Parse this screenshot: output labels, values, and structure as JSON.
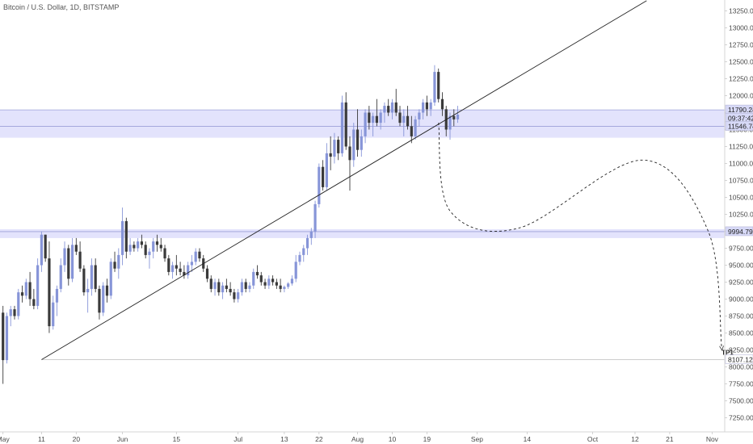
{
  "chart_data": {
    "type": "candlestick",
    "title": "Bitcoin / U.S. Dollar, 1D, BITSTAMP",
    "ylim": [
      7100,
      13400
    ],
    "y_ticks": [
      13250,
      13000,
      12750,
      12500,
      12250,
      12000,
      11750,
      11500,
      11250,
      11000,
      10750,
      10500,
      10250,
      10000,
      9750,
      9500,
      9250,
      9000,
      8750,
      8500,
      8250,
      8000,
      7750,
      7500,
      7250
    ],
    "x_ticks": [
      {
        "label": "May",
        "day": 0
      },
      {
        "label": "11",
        "day": 10
      },
      {
        "label": "20",
        "day": 19
      },
      {
        "label": "Jun",
        "day": 31
      },
      {
        "label": "15",
        "day": 45
      },
      {
        "label": "Jul",
        "day": 61
      },
      {
        "label": "13",
        "day": 73
      },
      {
        "label": "22",
        "day": 82
      },
      {
        "label": "Aug",
        "day": 92
      },
      {
        "label": "10",
        "day": 101
      },
      {
        "label": "19",
        "day": 110
      },
      {
        "label": "Sep",
        "day": 123
      },
      {
        "label": "14",
        "day": 136
      },
      {
        "label": "Oct",
        "day": 153
      },
      {
        "label": "12",
        "day": 164
      },
      {
        "label": "21",
        "day": 173
      },
      {
        "label": "Nov",
        "day": 184
      }
    ],
    "candles": [
      [
        8800,
        8900,
        7750,
        8100
      ],
      [
        8100,
        8800,
        8050,
        8750
      ],
      [
        8750,
        8900,
        8600,
        8850
      ],
      [
        8850,
        8900,
        8700,
        8750
      ],
      [
        8750,
        9150,
        8700,
        9100
      ],
      [
        9100,
        9200,
        8950,
        9050
      ],
      [
        9050,
        9300,
        9000,
        9250
      ],
      [
        9250,
        9400,
        8900,
        9000
      ],
      [
        9000,
        9150,
        8850,
        8900
      ],
      [
        8900,
        9600,
        8850,
        9500
      ],
      [
        9500,
        10000,
        9400,
        9950
      ],
      [
        9950,
        9950,
        9550,
        9600
      ],
      [
        9600,
        9850,
        8500,
        8600
      ],
      [
        8600,
        9050,
        8550,
        8950
      ],
      [
        8950,
        9200,
        8750,
        9150
      ],
      [
        9150,
        9600,
        9100,
        9500
      ],
      [
        9500,
        9850,
        9400,
        9750
      ],
      [
        9750,
        9800,
        9200,
        9300
      ],
      [
        9300,
        9900,
        9250,
        9800
      ],
      [
        9800,
        9900,
        9650,
        9700
      ],
      [
        9700,
        9850,
        9400,
        9450
      ],
      [
        9450,
        9500,
        9050,
        9100
      ],
      [
        9100,
        9300,
        8800,
        9150
      ],
      [
        9150,
        9600,
        9050,
        9500
      ],
      [
        9500,
        9600,
        9100,
        9150
      ],
      [
        9150,
        9200,
        8700,
        8800
      ],
      [
        8800,
        9250,
        8750,
        9200
      ],
      [
        9200,
        9300,
        8950,
        9050
      ],
      [
        9050,
        9600,
        9000,
        9550
      ],
      [
        9550,
        9700,
        9400,
        9450
      ],
      [
        9450,
        9750,
        9300,
        9650
      ],
      [
        9650,
        10350,
        9500,
        10150
      ],
      [
        10150,
        10200,
        9600,
        9700
      ],
      [
        9700,
        9900,
        9650,
        9800
      ],
      [
        9800,
        9850,
        9700,
        9750
      ],
      [
        9750,
        9900,
        9700,
        9850
      ],
      [
        9850,
        9950,
        9750,
        9800
      ],
      [
        9800,
        9850,
        9600,
        9650
      ],
      [
        9650,
        9750,
        9450,
        9700
      ],
      [
        9700,
        9900,
        9600,
        9850
      ],
      [
        9850,
        9950,
        9700,
        9800
      ],
      [
        9800,
        9900,
        9700,
        9750
      ],
      [
        9750,
        9800,
        9550,
        9600
      ],
      [
        9600,
        9650,
        9350,
        9400
      ],
      [
        9400,
        9550,
        9300,
        9500
      ],
      [
        9500,
        9650,
        9350,
        9450
      ],
      [
        9450,
        9550,
        9350,
        9400
      ],
      [
        9400,
        9500,
        9300,
        9350
      ],
      [
        9350,
        9550,
        9300,
        9500
      ],
      [
        9500,
        9650,
        9400,
        9550
      ],
      [
        9550,
        9750,
        9500,
        9700
      ],
      [
        9700,
        9750,
        9550,
        9600
      ],
      [
        9600,
        9650,
        9400,
        9450
      ],
      [
        9450,
        9500,
        9250,
        9300
      ],
      [
        9300,
        9350,
        9100,
        9150
      ],
      [
        9150,
        9300,
        9050,
        9250
      ],
      [
        9250,
        9300,
        9050,
        9100
      ],
      [
        9100,
        9250,
        9000,
        9200
      ],
      [
        9200,
        9300,
        9100,
        9150
      ],
      [
        9150,
        9250,
        9050,
        9100
      ],
      [
        9100,
        9150,
        8950,
        9000
      ],
      [
        9000,
        9150,
        8950,
        9100
      ],
      [
        9100,
        9300,
        9050,
        9250
      ],
      [
        9250,
        9300,
        9100,
        9150
      ],
      [
        9150,
        9250,
        9100,
        9200
      ],
      [
        9200,
        9450,
        9150,
        9400
      ],
      [
        9400,
        9500,
        9300,
        9350
      ],
      [
        9350,
        9400,
        9200,
        9250
      ],
      [
        9250,
        9300,
        9150,
        9200
      ],
      [
        9200,
        9350,
        9150,
        9300
      ],
      [
        9300,
        9350,
        9200,
        9250
      ],
      [
        9250,
        9300,
        9150,
        9200
      ],
      [
        9200,
        9300,
        9100,
        9150
      ],
      [
        9150,
        9200,
        9100,
        9180
      ],
      [
        9180,
        9250,
        9150,
        9230
      ],
      [
        9230,
        9350,
        9200,
        9300
      ],
      [
        9300,
        9650,
        9250,
        9550
      ],
      [
        9550,
        9700,
        9500,
        9650
      ],
      [
        9650,
        9800,
        9550,
        9750
      ],
      [
        9750,
        9950,
        9650,
        9900
      ],
      [
        9900,
        10050,
        9800,
        10000
      ],
      [
        10000,
        10450,
        9900,
        10400
      ],
      [
        10400,
        11000,
        10350,
        10950
      ],
      [
        10950,
        11050,
        10600,
        10650
      ],
      [
        10650,
        11300,
        10600,
        11150
      ],
      [
        11150,
        11400,
        10900,
        11100
      ],
      [
        11100,
        11450,
        11000,
        11350
      ],
      [
        11350,
        11400,
        11050,
        11150
      ],
      [
        11150,
        12000,
        11100,
        11900
      ],
      [
        11900,
        12050,
        11200,
        11250
      ],
      [
        11250,
        11400,
        10600,
        11050
      ],
      [
        11050,
        11600,
        10950,
        11500
      ],
      [
        11500,
        11800,
        11100,
        11200
      ],
      [
        11200,
        11500,
        11100,
        11400
      ],
      [
        11400,
        11800,
        11300,
        11750
      ],
      [
        11750,
        11850,
        11500,
        11600
      ],
      [
        11600,
        11750,
        11400,
        11700
      ],
      [
        11700,
        11950,
        11550,
        11600
      ],
      [
        11600,
        11800,
        11500,
        11750
      ],
      [
        11750,
        11900,
        11600,
        11850
      ],
      [
        11850,
        11950,
        11700,
        11750
      ],
      [
        11750,
        11950,
        11650,
        11900
      ],
      [
        11900,
        12100,
        11700,
        11750
      ],
      [
        11750,
        11850,
        11550,
        11600
      ],
      [
        11600,
        11800,
        11400,
        11700
      ],
      [
        11700,
        11850,
        11500,
        11550
      ],
      [
        11550,
        11700,
        11300,
        11400
      ],
      [
        11400,
        11700,
        11350,
        11650
      ],
      [
        11650,
        11800,
        11550,
        11750
      ],
      [
        11750,
        11950,
        11650,
        11900
      ],
      [
        11900,
        12000,
        11700,
        11800
      ],
      [
        11800,
        11950,
        11700,
        11900
      ],
      [
        11900,
        12450,
        11850,
        12350
      ],
      [
        12350,
        12400,
        11900,
        11950
      ],
      [
        11950,
        12050,
        11700,
        11800
      ],
      [
        11800,
        11850,
        11400,
        11500
      ],
      [
        11500,
        11750,
        11350,
        11700
      ],
      [
        11700,
        11800,
        11550,
        11650
      ],
      [
        11650,
        11850,
        11600,
        11720
      ]
    ],
    "zones": [
      {
        "top": 11790.24,
        "bottom": 11380
      },
      {
        "top": 10030,
        "bottom": 9900
      }
    ],
    "level_lines": [
      11790.24,
      11546.74,
      9994.79,
      8107.12
    ],
    "price_tags": [
      {
        "label": "11790.24",
        "value": 11790.24,
        "style": "zone"
      },
      {
        "label": "09:37:42",
        "value": 11668,
        "style": "zone"
      },
      {
        "label": "11546.74",
        "value": 11546.74,
        "style": "zone"
      },
      {
        "label": "9994.79",
        "value": 9994.79,
        "style": "zone"
      },
      {
        "label": "8107.12",
        "value": 8107.12,
        "style": "plain"
      }
    ],
    "trendline": {
      "start": {
        "day": 10,
        "price": 8107.12
      },
      "end": {
        "day": 167,
        "price": 13400
      }
    },
    "projection_path": [
      {
        "day": 113,
        "price": 11600
      },
      {
        "day": 116,
        "price": 10300
      },
      {
        "day": 134,
        "price": 10050
      },
      {
        "day": 166,
        "price": 11050
      },
      {
        "day": 183,
        "price": 10000
      },
      {
        "day": 186.5,
        "price": 8280
      }
    ],
    "target_label": {
      "text": "TP1",
      "day": 188,
      "price": 8180
    }
  }
}
